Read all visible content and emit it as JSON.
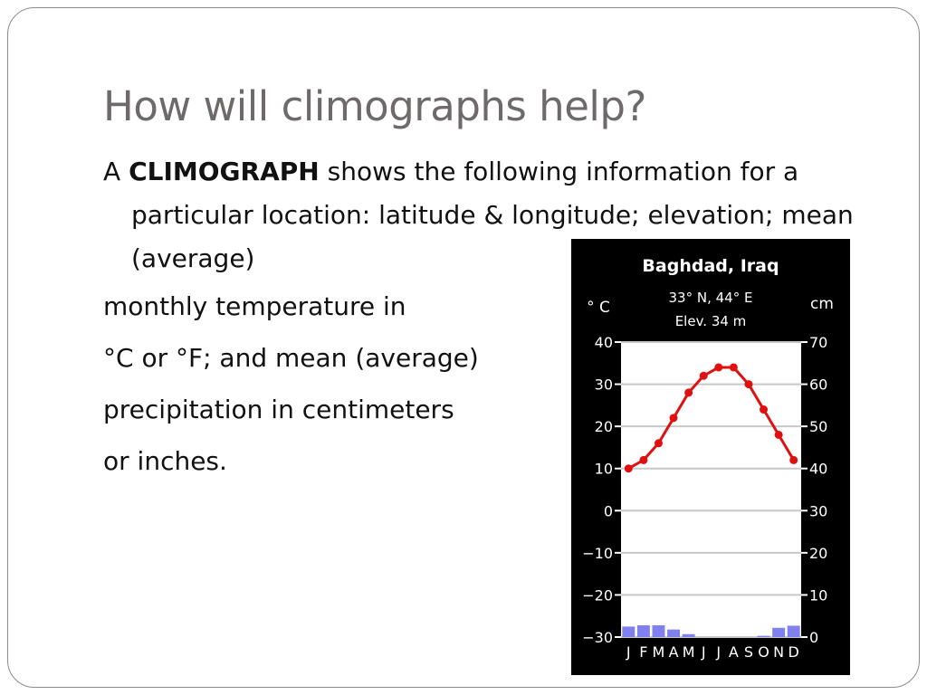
{
  "slide": {
    "title": "How will climographs help?",
    "intro_prefix": "A ",
    "intro_term": "CLIMOGRAPH",
    "intro_rest": " shows the following information for a particular location: latitude & longitude; elevation; mean (average)",
    "lines": [
      "monthly temperature in",
      "°C or °F; and mean (average)",
      "precipitation in centimeters",
      "or inches."
    ]
  },
  "chart_data": {
    "type": "line",
    "title": "Baghdad, Iraq",
    "subtitle_lines": [
      "33° N, 44° E",
      "Elev. 34 m"
    ],
    "left_unit": "° C",
    "right_unit": "cm",
    "categories": [
      "J",
      "F",
      "M",
      "A",
      "M",
      "J",
      "J",
      "A",
      "S",
      "O",
      "N",
      "D"
    ],
    "temperature_ylim": [
      -30,
      40
    ],
    "temperature_ticks": [
      40,
      30,
      20,
      10,
      0,
      -10,
      -20,
      -30
    ],
    "precipitation_ylim": [
      0,
      70
    ],
    "precipitation_ticks": [
      70,
      60,
      50,
      40,
      30,
      20,
      10,
      0
    ],
    "grid": true,
    "series": [
      {
        "type": "line",
        "axis": "temperature",
        "values": [
          10,
          12,
          16,
          22,
          28,
          32,
          34,
          34,
          30,
          24,
          18,
          12
        ]
      },
      {
        "type": "bar",
        "axis": "precipitation",
        "values": [
          2.5,
          2.8,
          2.8,
          1.8,
          0.7,
          0,
          0,
          0,
          0,
          0.3,
          2.2,
          2.7
        ]
      }
    ],
    "colors": {
      "background": "#000000",
      "plot_area": "#ffffff",
      "grid": "#c8c8c8",
      "temperature": "#e01010",
      "precipitation": "#8080ee",
      "text": "#ffffff"
    }
  }
}
